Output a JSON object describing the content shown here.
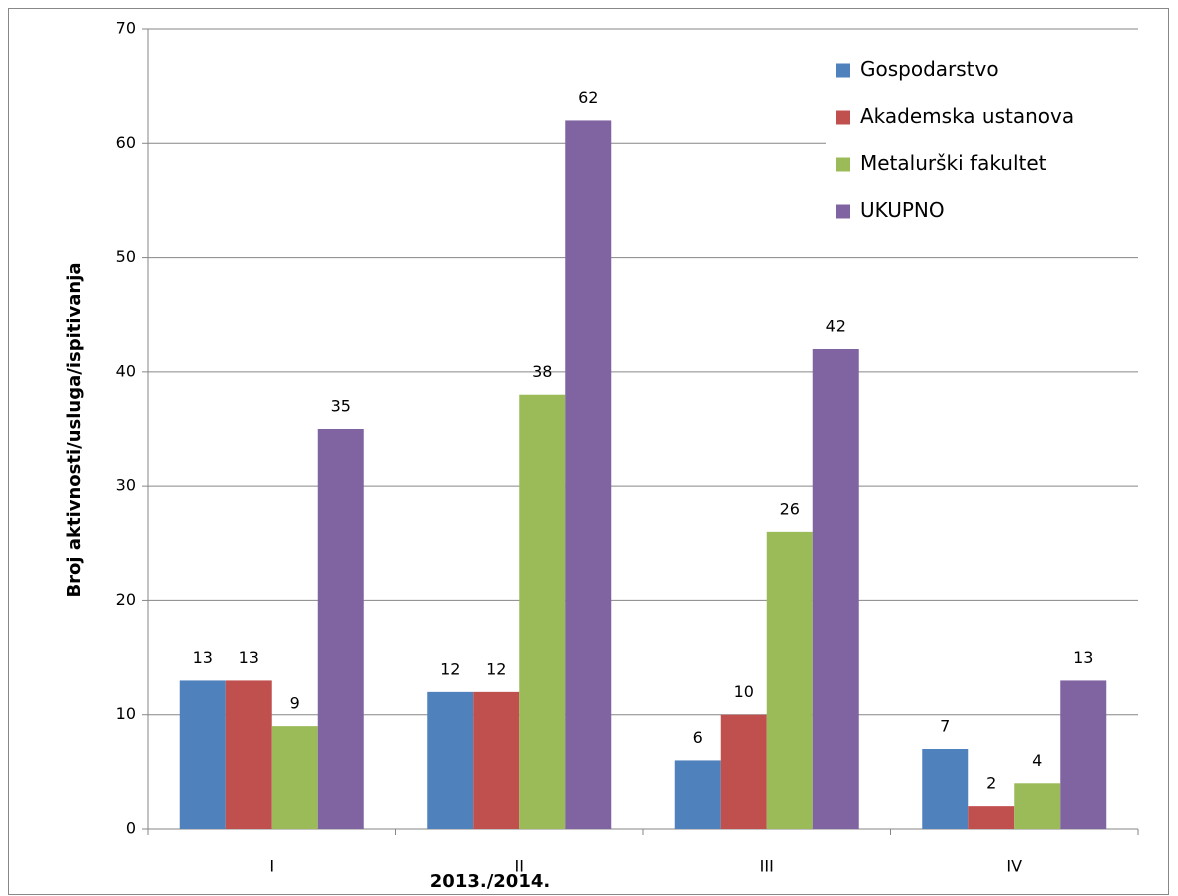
{
  "chart_data": {
    "type": "bar",
    "categories": [
      "I",
      "II",
      "III",
      "IV"
    ],
    "series": [
      {
        "name": "Gospodarstvo",
        "color": "#4f81bd",
        "values": [
          13,
          12,
          6,
          7
        ]
      },
      {
        "name": "Akademska ustanova",
        "color": "#c0504d",
        "values": [
          13,
          12,
          10,
          2
        ]
      },
      {
        "name": "Metalurški fakultet",
        "color": "#9bbb59",
        "values": [
          9,
          38,
          26,
          4
        ]
      },
      {
        "name": "UKUPNO",
        "color": "#8064a2",
        "values": [
          35,
          62,
          42,
          13
        ]
      }
    ],
    "x_label": "2013./2014.",
    "y_label": "Broj aktivnosti/usluga/ispitivanja",
    "ylim": [
      0,
      70
    ],
    "yticks": [
      0,
      10,
      20,
      30,
      40,
      50,
      60,
      70
    ],
    "grid": true,
    "legend": "top-right"
  }
}
